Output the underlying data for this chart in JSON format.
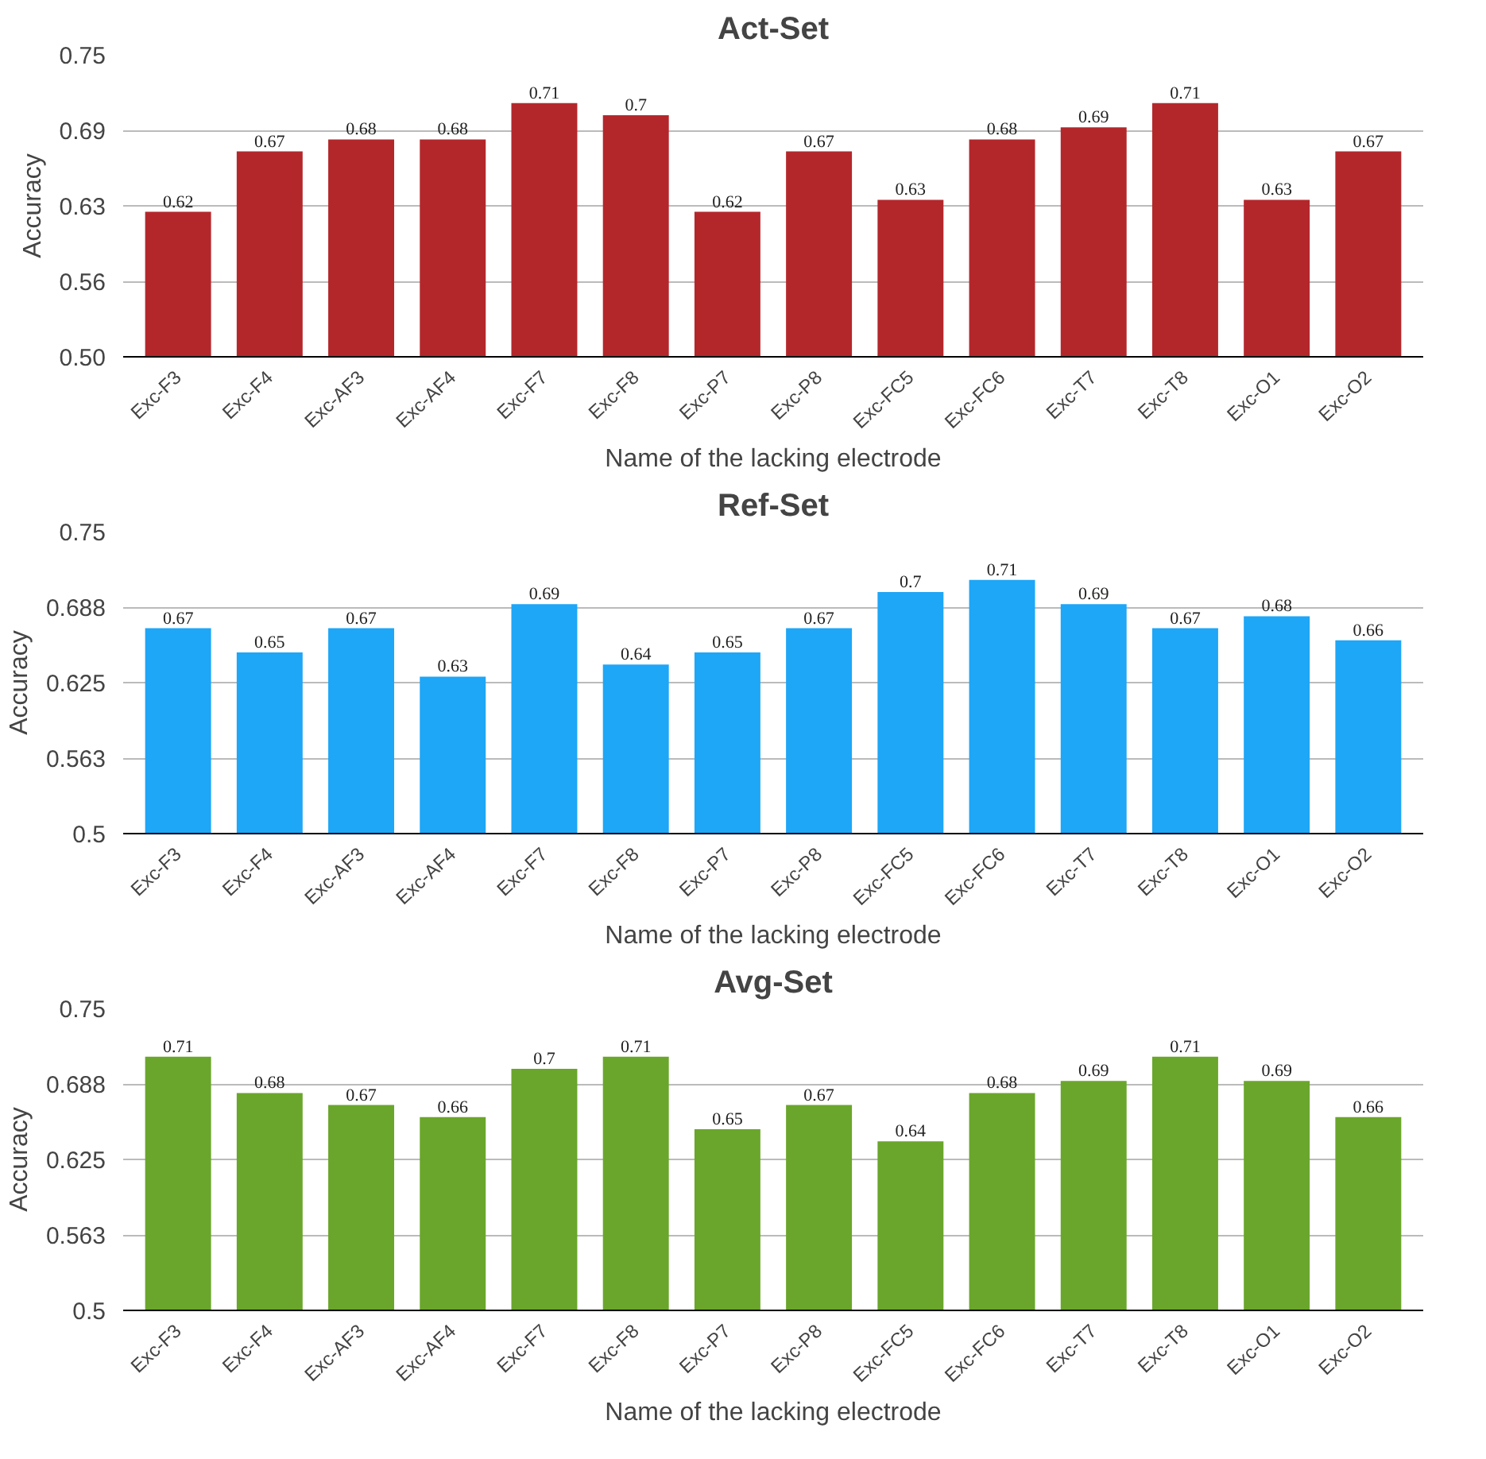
{
  "chart_data": [
    {
      "type": "bar",
      "title": "Act-Set",
      "xlabel": "Name of the lacking electrode",
      "ylabel": "Accuracy",
      "categories": [
        "Exc-F3",
        "Exc-F4",
        "Exc-AF3",
        "Exc-AF4",
        "Exc-F7",
        "Exc-F8",
        "Exc-P7",
        "Exc-P8",
        "Exc-FC5",
        "Exc-FC6",
        "Exc-T7",
        "Exc-T8",
        "Exc-O1",
        "Exc-O2"
      ],
      "series": [
        {
          "color": "#b3272b",
          "values": [
            0.62,
            0.67,
            0.68,
            0.68,
            0.71,
            0.7,
            0.62,
            0.67,
            0.63,
            0.68,
            0.69,
            0.71,
            0.63,
            0.67
          ]
        }
      ],
      "ylim": [
        0.5,
        0.75
      ],
      "yticks": [
        {
          "value": 0.5,
          "label": "0.50"
        },
        {
          "value": 0.5625,
          "label": "0.56"
        },
        {
          "value": 0.625,
          "label": "0.63"
        },
        {
          "value": 0.6875,
          "label": "0.69"
        },
        0.75
      ],
      "grid": "y",
      "data_labels": true
    },
    {
      "type": "bar",
      "title": "Ref-Set",
      "xlabel": "Name of the lacking electrode",
      "ylabel": "Accuracy",
      "categories": [
        "Exc-F3",
        "Exc-F4",
        "Exc-AF3",
        "Exc-AF4",
        "Exc-F7",
        "Exc-F8",
        "Exc-P7",
        "Exc-P8",
        "Exc-FC5",
        "Exc-FC6",
        "Exc-T7",
        "Exc-T8",
        "Exc-O1",
        "Exc-O2"
      ],
      "series": [
        {
          "color": "#1ea6f7",
          "values": [
            0.67,
            0.65,
            0.67,
            0.63,
            0.69,
            0.64,
            0.65,
            0.67,
            0.7,
            0.71,
            0.69,
            0.67,
            0.68,
            0.66
          ]
        }
      ],
      "ylim": [
        0.5,
        0.75
      ],
      "yticks": [
        0.5,
        {
          "value": 0.5625,
          "label": "0.563"
        },
        0.625,
        {
          "value": 0.6875,
          "label": "0.688"
        },
        0.75
      ],
      "grid": "y",
      "data_labels": true
    },
    {
      "type": "bar",
      "title": "Avg-Set",
      "xlabel": "Name of the lacking electrode",
      "ylabel": "Accuracy",
      "categories": [
        "Exc-F3",
        "Exc-F4",
        "Exc-AF3",
        "Exc-AF4",
        "Exc-F7",
        "Exc-F8",
        "Exc-P7",
        "Exc-P8",
        "Exc-FC5",
        "Exc-FC6",
        "Exc-T7",
        "Exc-T8",
        "Exc-O1",
        "Exc-O2"
      ],
      "series": [
        {
          "color": "#6aa62b",
          "values": [
            0.71,
            0.68,
            0.67,
            0.66,
            0.7,
            0.71,
            0.65,
            0.67,
            0.64,
            0.68,
            0.69,
            0.71,
            0.69,
            0.66
          ]
        }
      ],
      "ylim": [
        0.5,
        0.75
      ],
      "yticks": [
        0.5,
        {
          "value": 0.5625,
          "label": "0.563"
        },
        0.625,
        {
          "value": 0.6875,
          "label": "0.688"
        },
        0.75
      ],
      "grid": "y",
      "data_labels": true
    }
  ]
}
